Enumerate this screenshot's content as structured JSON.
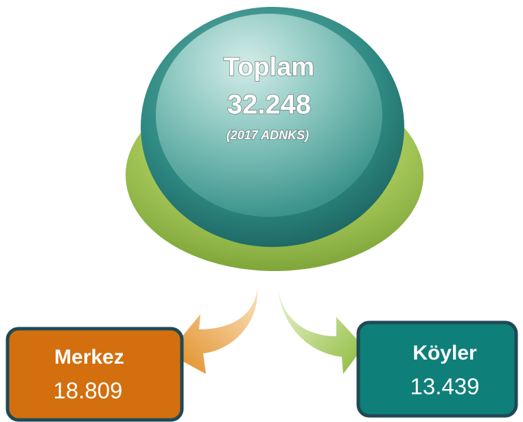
{
  "total": {
    "title": "Toplam",
    "value": "32.248",
    "note": "(2017 ADNKS)"
  },
  "nodes": [
    {
      "label": "Merkez",
      "value": "18.809"
    },
    {
      "label": "Köyler",
      "value": "13.439"
    }
  ]
}
